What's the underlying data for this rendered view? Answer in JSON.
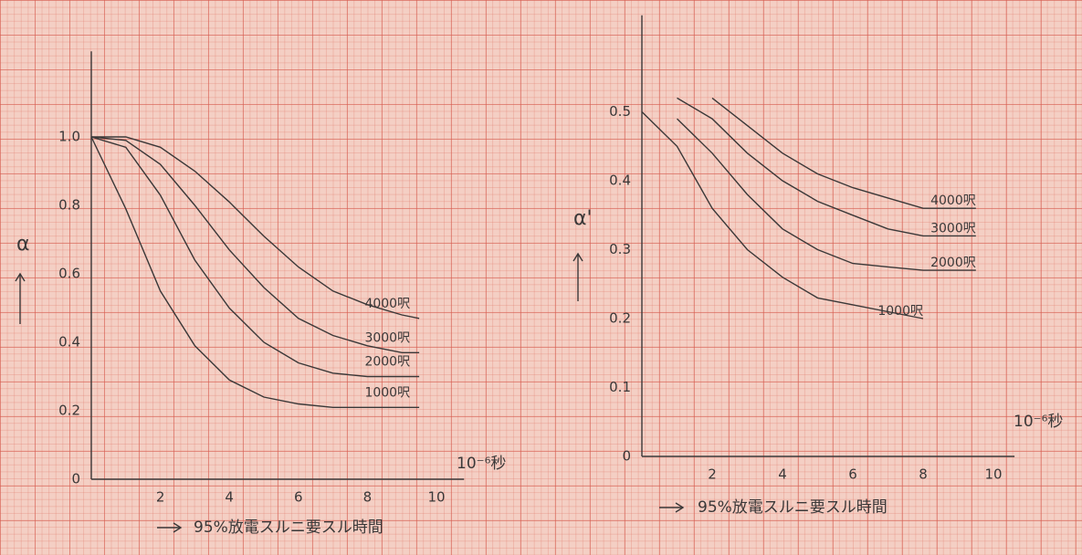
{
  "chart_data": [
    {
      "type": "line",
      "y_label": "α",
      "x_unit": "10⁻⁶秒",
      "x_label": "95%放電スルニ要スル時間",
      "x": [
        0,
        1,
        2,
        3,
        4,
        5,
        6,
        7,
        8,
        9,
        9.5
      ],
      "xlim": [
        0,
        10.8
      ],
      "xticks": [
        2,
        4,
        6,
        8,
        10
      ],
      "ylim": [
        0,
        1.25
      ],
      "yticks": [
        0,
        {
          "value": 0.2,
          "label": "0.2"
        },
        {
          "value": 0.4,
          "label": "0.4"
        },
        {
          "value": 0.6,
          "label": "0.6"
        },
        {
          "value": 0.8,
          "label": "0.8"
        },
        {
          "value": 1,
          "label": "1.0"
        }
      ],
      "series": [
        {
          "name": "4000呎",
          "color": "#3a3838",
          "values": [
            1.0,
            1.0,
            0.97,
            0.9,
            0.81,
            0.71,
            0.62,
            0.55,
            0.51,
            0.48,
            0.47
          ]
        },
        {
          "name": "3000呎",
          "color": "#3a3838",
          "values": [
            1.0,
            0.99,
            0.92,
            0.8,
            0.67,
            0.56,
            0.47,
            0.42,
            0.39,
            0.37,
            0.37
          ]
        },
        {
          "name": "2000呎",
          "color": "#3a3838",
          "values": [
            1.0,
            0.97,
            0.83,
            0.64,
            0.5,
            0.4,
            0.34,
            0.31,
            0.3,
            0.3,
            0.3
          ]
        },
        {
          "name": "1000呎",
          "color": "#3a3838",
          "values": [
            1.0,
            0.79,
            0.55,
            0.39,
            0.29,
            0.24,
            0.22,
            0.21,
            0.21,
            0.21,
            0.21
          ]
        }
      ]
    },
    {
      "type": "line",
      "y_label": "α'",
      "x_unit": "10⁻⁶秒",
      "x_label": "95%放電スルニ要スル時間",
      "x": [
        0,
        1,
        2,
        3,
        4,
        5,
        6,
        7,
        8,
        9.5
      ],
      "xlim": [
        0,
        10.6
      ],
      "xticks": [
        2,
        4,
        6,
        8,
        10
      ],
      "ylim": [
        0,
        0.64
      ],
      "yticks": [
        0,
        0.1,
        0.2,
        0.3,
        0.4,
        0.5
      ],
      "series": [
        {
          "name": "4000呎",
          "color": "#3a3838",
          "values": [
            null,
            null,
            0.52,
            0.48,
            0.44,
            0.41,
            0.39,
            0.375,
            0.36,
            0.36
          ]
        },
        {
          "name": "3000呎",
          "color": "#3a3838",
          "values": [
            null,
            0.52,
            0.49,
            0.44,
            0.4,
            0.37,
            0.35,
            0.33,
            0.32,
            0.32
          ]
        },
        {
          "name": "2000呎",
          "color": "#3a3838",
          "values": [
            null,
            0.49,
            0.44,
            0.38,
            0.33,
            0.3,
            0.28,
            0.275,
            0.27,
            0.27
          ]
        },
        {
          "name": "1000呎",
          "color": "#3a3838",
          "values": [
            0.5,
            0.45,
            0.36,
            0.3,
            0.26,
            0.23,
            0.22,
            0.21,
            0.2,
            null
          ]
        }
      ]
    }
  ]
}
